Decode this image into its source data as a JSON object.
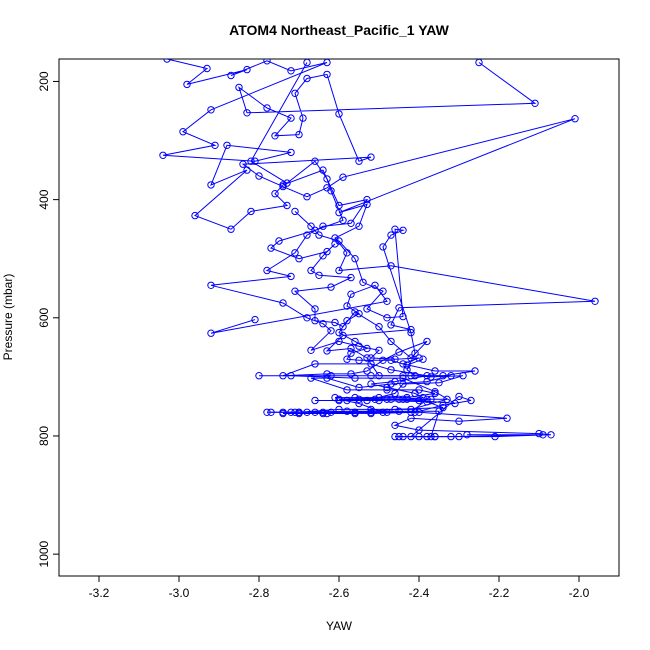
{
  "chart_data": {
    "type": "line",
    "title": "ATOM4 Northeast_Pacific_1 YAW",
    "xlabel": "YAW",
    "ylabel": "Pressure (mbar)",
    "xlim": [
      -3.3,
      -1.9
    ],
    "ylim": [
      1037,
      162
    ],
    "y_reversed": true,
    "x_ticks": [
      -3.2,
      -3.0,
      -2.8,
      -2.6,
      -2.4,
      -2.2,
      -2.0
    ],
    "x_tick_labels": [
      "-3.2",
      "-3.0",
      "-2.8",
      "-2.6",
      "-2.4",
      "-2.2",
      "-2.0"
    ],
    "y_ticks": [
      200,
      400,
      600,
      800,
      1000
    ],
    "y_tick_labels": [
      "200",
      "400",
      "600",
      "800",
      "1000"
    ],
    "series": [
      {
        "color": "#0000ff",
        "marker": "open-circle",
        "points": [
          [
            -3.03,
            162
          ],
          [
            -2.93,
            178
          ],
          [
            -2.98,
            205
          ],
          [
            -2.83,
            180
          ],
          [
            -2.87,
            190
          ],
          [
            -2.78,
            165
          ],
          [
            -2.72,
            182
          ],
          [
            -2.63,
            168
          ],
          [
            -2.92,
            248
          ],
          [
            -2.99,
            285
          ],
          [
            -2.91,
            308
          ],
          [
            -3.04,
            325
          ],
          [
            -2.81,
            335
          ],
          [
            -2.72,
            320
          ],
          [
            -2.88,
            308
          ],
          [
            -2.92,
            375
          ],
          [
            -2.83,
            350
          ],
          [
            -2.96,
            427
          ],
          [
            -2.87,
            450
          ],
          [
            -2.82,
            420
          ],
          [
            -2.73,
            410
          ],
          [
            -2.76,
            390
          ],
          [
            -2.74,
            375
          ],
          [
            -2.64,
            350
          ],
          [
            -2.6,
            410
          ],
          [
            -2.53,
            400
          ],
          [
            -2.57,
            440
          ],
          [
            -2.64,
            445
          ],
          [
            -2.68,
            460
          ],
          [
            -2.71,
            490
          ],
          [
            -2.78,
            520
          ],
          [
            -2.72,
            530
          ],
          [
            -2.92,
            545
          ],
          [
            -2.74,
            575
          ],
          [
            -2.68,
            600
          ],
          [
            -2.64,
            610
          ],
          [
            -2.62,
            622
          ],
          [
            -2.67,
            655
          ],
          [
            -2.6,
            640
          ],
          [
            -2.55,
            648
          ],
          [
            -2.5,
            655
          ],
          [
            -2.52,
            668
          ],
          [
            -2.46,
            670
          ],
          [
            -2.4,
            668
          ],
          [
            -2.44,
            678
          ],
          [
            -2.36,
            690
          ],
          [
            -2.26,
            690
          ],
          [
            -2.34,
            698
          ],
          [
            -2.42,
            698
          ],
          [
            -2.52,
            698
          ],
          [
            -2.62,
            698
          ],
          [
            -2.8,
            698
          ],
          [
            -2.72,
            698
          ],
          [
            -2.56,
            702
          ],
          [
            -2.44,
            702
          ],
          [
            -2.36,
            725
          ],
          [
            -2.31,
            745
          ],
          [
            -2.4,
            740
          ],
          [
            -2.48,
            738
          ],
          [
            -2.58,
            740
          ],
          [
            -2.66,
            740
          ],
          [
            -2.5,
            740
          ],
          [
            -2.38,
            742
          ],
          [
            -2.34,
            752
          ],
          [
            -2.46,
            755
          ],
          [
            -2.56,
            760
          ],
          [
            -2.64,
            760
          ],
          [
            -2.72,
            760
          ],
          [
            -2.78,
            760
          ],
          [
            -2.68,
            760
          ],
          [
            -2.52,
            762
          ],
          [
            -2.4,
            760
          ],
          [
            -2.18,
            770
          ],
          [
            -2.3,
            775
          ],
          [
            -2.42,
            770
          ],
          [
            -2.46,
            782
          ],
          [
            -2.4,
            790
          ],
          [
            -2.1,
            796
          ],
          [
            -2.07,
            798
          ],
          [
            -2.21,
            801
          ],
          [
            -2.36,
            801
          ],
          [
            -2.44,
            801
          ],
          [
            -2.38,
            801
          ],
          [
            -2.3,
            801
          ],
          [
            -2.46,
            801
          ],
          [
            -2.4,
            801
          ]
        ]
      },
      {
        "color": "#0000ff",
        "marker": "open-circle",
        "points": [
          [
            -2.25,
            168
          ],
          [
            -2.11,
            237
          ],
          [
            -2.83,
            253
          ],
          [
            -2.85,
            210
          ],
          [
            -2.78,
            245
          ],
          [
            -2.72,
            262
          ],
          [
            -2.76,
            292
          ],
          [
            -2.7,
            290
          ],
          [
            -2.69,
            262
          ],
          [
            -2.71,
            220
          ],
          [
            -2.68,
            195
          ],
          [
            -2.63,
            188
          ],
          [
            -2.6,
            255
          ],
          [
            -2.55,
            335
          ],
          [
            -2.52,
            328
          ],
          [
            -2.84,
            340
          ],
          [
            -2.8,
            360
          ],
          [
            -2.74,
            378
          ],
          [
            -2.68,
            395
          ],
          [
            -2.63,
            380
          ],
          [
            -2.59,
            362
          ],
          [
            -2.01,
            263
          ],
          [
            -2.6,
            422
          ],
          [
            -2.53,
            408
          ],
          [
            -2.55,
            445
          ],
          [
            -2.61,
            465
          ],
          [
            -2.58,
            490
          ],
          [
            -2.6,
            520
          ],
          [
            -2.47,
            512
          ],
          [
            -1.96,
            572
          ],
          [
            -2.45,
            583
          ],
          [
            -2.47,
            612
          ],
          [
            -2.42,
            620
          ],
          [
            -2.59,
            630
          ],
          [
            -2.63,
            656
          ],
          [
            -2.57,
            652
          ],
          [
            -2.53,
            668
          ],
          [
            -2.5,
            698
          ],
          [
            -2.44,
            698
          ],
          [
            -2.32,
            698
          ],
          [
            -2.38,
            708
          ],
          [
            -2.47,
            712
          ],
          [
            -2.55,
            718
          ],
          [
            -2.63,
            702
          ],
          [
            -2.67,
            702
          ],
          [
            -2.58,
            722
          ],
          [
            -2.48,
            722
          ],
          [
            -2.4,
            722
          ],
          [
            -2.36,
            728
          ],
          [
            -2.43,
            735
          ],
          [
            -2.5,
            735
          ],
          [
            -2.56,
            735
          ],
          [
            -2.61,
            735
          ],
          [
            -2.45,
            738
          ],
          [
            -2.37,
            738
          ],
          [
            -2.33,
            738
          ],
          [
            -2.42,
            755
          ],
          [
            -2.52,
            755
          ],
          [
            -2.6,
            755
          ],
          [
            -2.7,
            760
          ],
          [
            -2.77,
            760
          ],
          [
            -2.71,
            760
          ],
          [
            -2.62,
            760
          ],
          [
            -2.56,
            760
          ],
          [
            -2.48,
            760
          ],
          [
            -2.41,
            760
          ],
          [
            -2.34,
            748
          ],
          [
            -2.27,
            740
          ],
          [
            -2.3,
            733
          ],
          [
            -2.42,
            801
          ],
          [
            -2.36,
            801
          ],
          [
            -2.32,
            801
          ],
          [
            -2.09,
            798
          ],
          [
            -2.28,
            798
          ]
        ]
      },
      {
        "color": "#0000ff",
        "marker": "open-circle",
        "points": [
          [
            -2.68,
            168
          ],
          [
            -2.82,
            335
          ],
          [
            -2.73,
            372
          ],
          [
            -2.66,
            335
          ],
          [
            -2.63,
            365
          ],
          [
            -2.62,
            385
          ],
          [
            -2.59,
            435
          ],
          [
            -2.66,
            452
          ],
          [
            -2.75,
            470
          ],
          [
            -2.77,
            482
          ],
          [
            -2.7,
            500
          ],
          [
            -2.63,
            488
          ],
          [
            -2.61,
            475
          ],
          [
            -2.64,
            495
          ],
          [
            -2.67,
            520
          ],
          [
            -2.65,
            528
          ],
          [
            -2.57,
            532
          ],
          [
            -2.62,
            548
          ],
          [
            -2.71,
            555
          ],
          [
            -2.66,
            585
          ],
          [
            -2.66,
            605
          ],
          [
            -2.61,
            608
          ],
          [
            -2.59,
            615
          ],
          [
            -2.56,
            590
          ],
          [
            -2.5,
            615
          ],
          [
            -2.47,
            640
          ],
          [
            -2.42,
            668
          ],
          [
            -2.38,
            640
          ],
          [
            -2.45,
            658
          ],
          [
            -2.49,
            672
          ],
          [
            -2.53,
            690
          ],
          [
            -2.57,
            695
          ],
          [
            -2.63,
            695
          ],
          [
            -2.74,
            698
          ],
          [
            -2.66,
            678
          ],
          [
            -2.52,
            678
          ],
          [
            -2.47,
            688
          ],
          [
            -2.38,
            698
          ],
          [
            -2.46,
            708
          ],
          [
            -2.52,
            712
          ],
          [
            -2.48,
            718
          ],
          [
            -2.41,
            728
          ],
          [
            -2.39,
            735
          ],
          [
            -2.44,
            738
          ],
          [
            -2.51,
            738
          ],
          [
            -2.6,
            738
          ],
          [
            -2.55,
            745
          ],
          [
            -2.49,
            760
          ],
          [
            -2.56,
            762
          ],
          [
            -2.63,
            762
          ],
          [
            -2.66,
            760
          ],
          [
            -2.74,
            760
          ],
          [
            -2.7,
            760
          ],
          [
            -2.58,
            758
          ],
          [
            -2.45,
            758
          ],
          [
            -2.35,
            758
          ],
          [
            -2.37,
            801
          ],
          [
            -2.45,
            801
          ]
        ]
      },
      {
        "color": "#0000ff",
        "marker": "open-circle",
        "points": [
          [
            -2.81,
            603
          ],
          [
            -2.92,
            626
          ],
          [
            -2.48,
            572
          ],
          [
            -2.51,
            545
          ],
          [
            -2.57,
            560
          ],
          [
            -2.58,
            580
          ],
          [
            -2.55,
            593
          ],
          [
            -2.58,
            605
          ],
          [
            -2.6,
            625
          ],
          [
            -2.56,
            640
          ],
          [
            -2.53,
            652
          ],
          [
            -2.57,
            660
          ],
          [
            -2.58,
            670
          ],
          [
            -2.55,
            672
          ],
          [
            -2.47,
            672
          ],
          [
            -2.43,
            680
          ],
          [
            -2.39,
            670
          ]
        ]
      },
      {
        "color": "#0000ff",
        "marker": "open-circle",
        "points": [
          [
            -2.71,
            420
          ],
          [
            -2.67,
            445
          ],
          [
            -2.65,
            460
          ],
          [
            -2.6,
            470
          ],
          [
            -2.56,
            500
          ],
          [
            -2.54,
            540
          ],
          [
            -2.49,
            555
          ],
          [
            -2.53,
            585
          ],
          [
            -2.48,
            600
          ],
          [
            -2.44,
            598
          ],
          [
            -2.46,
            450
          ],
          [
            -2.44,
            452
          ],
          [
            -2.47,
            460
          ],
          [
            -2.49,
            480
          ],
          [
            -2.42,
            625
          ],
          [
            -2.41,
            660
          ],
          [
            -2.43,
            688
          ],
          [
            -2.41,
            698
          ],
          [
            -2.37,
            700
          ],
          [
            -2.29,
            698
          ],
          [
            -2.35,
            710
          ],
          [
            -2.44,
            712
          ],
          [
            -2.46,
            728
          ],
          [
            -2.53,
            740
          ],
          [
            -2.6,
            740
          ],
          [
            -2.55,
            738
          ],
          [
            -2.47,
            738
          ],
          [
            -2.43,
            738
          ],
          [
            -2.38,
            738
          ],
          [
            -2.42,
            760
          ],
          [
            -2.52,
            760
          ],
          [
            -2.64,
            762
          ],
          [
            -2.7,
            762
          ],
          [
            -2.74,
            762
          ]
        ]
      }
    ]
  }
}
